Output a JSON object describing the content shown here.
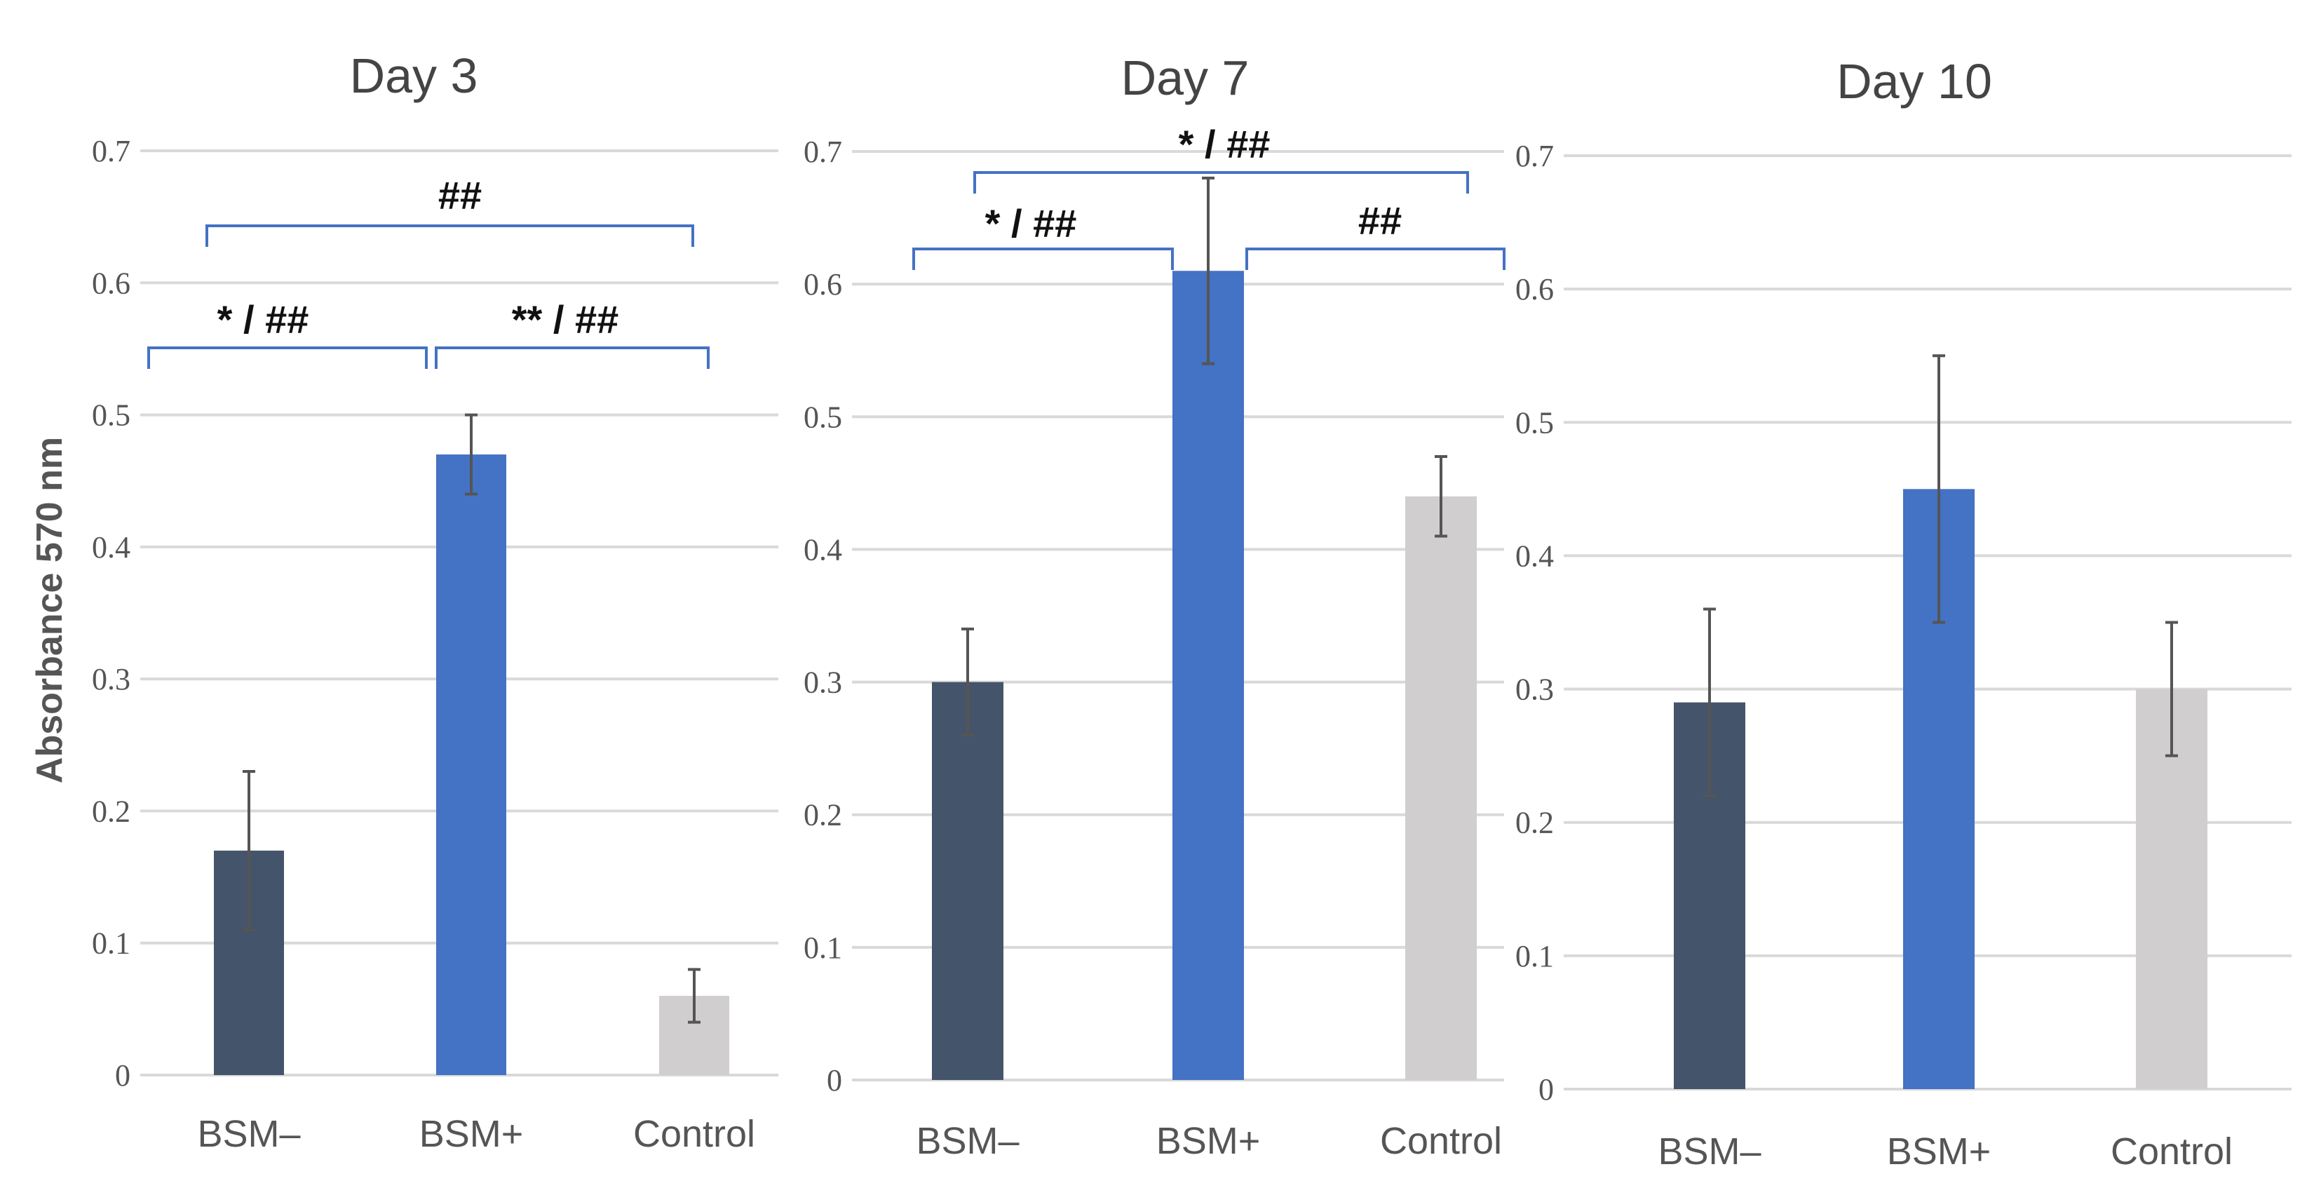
{
  "figure": {
    "ylabel": "Absorbance 570 nm"
  },
  "chart_data": [
    {
      "type": "bar",
      "title": "Day 3",
      "xlabel": "",
      "ylabel": "Absorbance 570 nm",
      "ylim": [
        0,
        0.7
      ],
      "yticks": [
        "0",
        "0.1",
        "0.2",
        "0.3",
        "0.4",
        "0.5",
        "0.6",
        "0.7"
      ],
      "categories": [
        "BSM–",
        "BSM+",
        "Control"
      ],
      "values": [
        0.17,
        0.47,
        0.06
      ],
      "errors": [
        0.06,
        0.03,
        0.02
      ],
      "colors": [
        "#44546a",
        "#4472c4",
        "#d0cece"
      ],
      "annotations": [
        {
          "text": "* / ##",
          "from": 0,
          "to": 1
        },
        {
          "text": "** / ##",
          "from": 1,
          "to": 2
        },
        {
          "text": "##",
          "from": 0,
          "to": 2
        }
      ]
    },
    {
      "type": "bar",
      "title": "Day 7",
      "xlabel": "",
      "ylabel": "",
      "ylim": [
        0,
        0.7
      ],
      "yticks": [
        "0",
        "0.1",
        "0.2",
        "0.3",
        "0.4",
        "0.5",
        "0.6",
        "0.7"
      ],
      "categories": [
        "BSM–",
        "BSM+",
        "Control"
      ],
      "values": [
        0.3,
        0.61,
        0.44
      ],
      "errors": [
        0.04,
        0.07,
        0.03
      ],
      "colors": [
        "#44546a",
        "#4472c4",
        "#d0cece"
      ],
      "annotations": [
        {
          "text": "* / ##",
          "from": 0,
          "to": 1
        },
        {
          "text": "##",
          "from": 1,
          "to": 2
        },
        {
          "text": "* / ##",
          "from": 0,
          "to": 2
        }
      ]
    },
    {
      "type": "bar",
      "title": "Day 10",
      "xlabel": "",
      "ylabel": "",
      "ylim": [
        0,
        0.7
      ],
      "yticks": [
        "0",
        "0.1",
        "0.2",
        "0.3",
        "0.4",
        "0.5",
        "0.6",
        "0.7"
      ],
      "categories": [
        "BSM–",
        "BSM+",
        "Control"
      ],
      "values": [
        0.29,
        0.45,
        0.3
      ],
      "errors": [
        0.07,
        0.1,
        0.05
      ],
      "colors": [
        "#44546a",
        "#4472c4",
        "#d0cece"
      ],
      "annotations": []
    }
  ]
}
